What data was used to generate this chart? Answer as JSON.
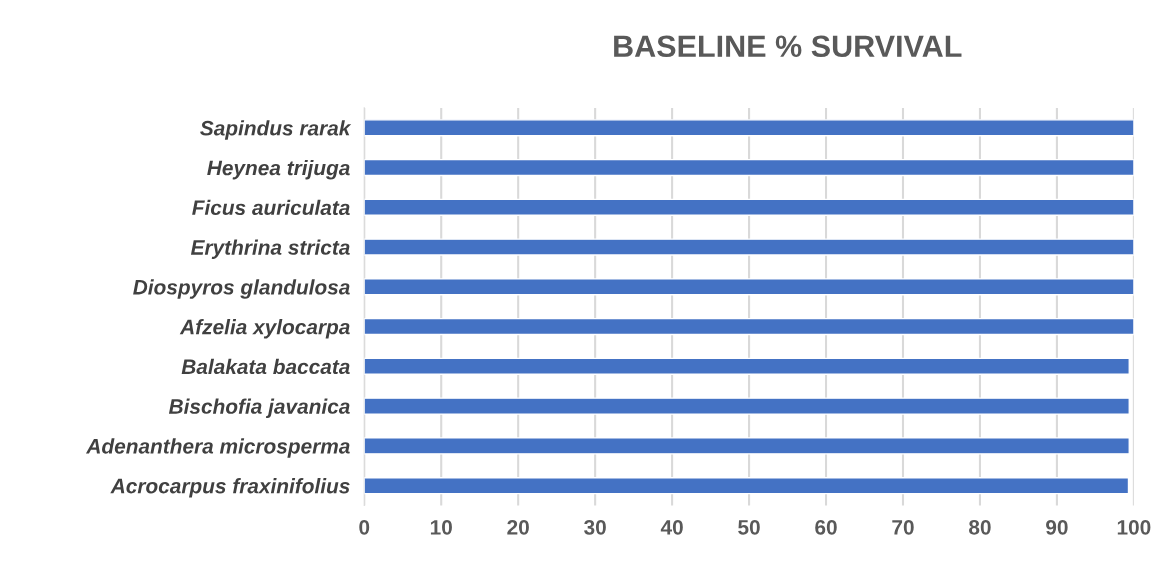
{
  "chart_data": {
    "type": "bar",
    "orientation": "horizontal",
    "title": "BASELINE % SURVIVAL",
    "categories": [
      "Sapindus rarak",
      "Heynea trijuga",
      "Ficus auriculata",
      "Erythrina stricta",
      "Diospyros glandulosa",
      "Afzelia xylocarpa",
      "Balakata baccata",
      "Bischofia javanica",
      "Adenanthera microsperma",
      "Acrocarpus fraxinifolius"
    ],
    "values": [
      100,
      100,
      100,
      100,
      100,
      100,
      99.4,
      99.4,
      99.4,
      99.3
    ],
    "color": "#4472c4",
    "xlim": [
      0,
      100
    ],
    "xticks": [
      0,
      10,
      20,
      30,
      40,
      50,
      60,
      70,
      80,
      90,
      100
    ],
    "grid": "x"
  }
}
